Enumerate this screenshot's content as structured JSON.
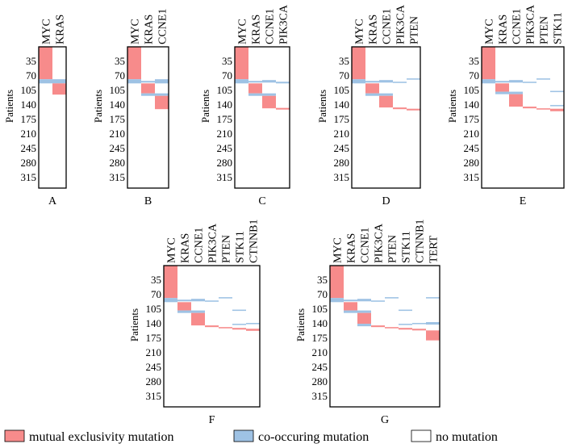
{
  "colors": {
    "exclusive": "#f78b8b",
    "cooccur": "#9ec2e4",
    "none": "#ffffff",
    "border": "#000000"
  },
  "y_axis": {
    "label": "Patients",
    "ticks": [
      "35",
      "70",
      "105",
      "140",
      "175",
      "210",
      "245",
      "280",
      "315"
    ],
    "tick_values": [
      35,
      70,
      105,
      140,
      175,
      210,
      245,
      280,
      315
    ],
    "range": [
      0,
      340
    ]
  },
  "legend": {
    "exclusive_label": "mutual exclusivity mutation",
    "cooccur_label": "co-occuring mutation",
    "none_label": "no mutation"
  },
  "panels": [
    {
      "letter": "A",
      "genes": [
        "MYC",
        "KRAS"
      ],
      "segments": [
        {
          "col": 0,
          "start": 0,
          "end": 78,
          "type": "exclusive"
        },
        {
          "col": 0,
          "start": 78,
          "end": 88,
          "type": "cooccur"
        },
        {
          "col": 1,
          "start": 78,
          "end": 88,
          "type": "cooccur"
        },
        {
          "col": 1,
          "start": 88,
          "end": 115,
          "type": "exclusive"
        }
      ]
    },
    {
      "letter": "B",
      "genes": [
        "MYC",
        "KRAS",
        "CCNE1"
      ],
      "segments": [
        {
          "col": 0,
          "start": 0,
          "end": 78,
          "type": "exclusive"
        },
        {
          "col": 0,
          "start": 78,
          "end": 88,
          "type": "cooccur"
        },
        {
          "col": 1,
          "start": 82,
          "end": 86,
          "type": "cooccur"
        },
        {
          "col": 1,
          "start": 88,
          "end": 112,
          "type": "exclusive"
        },
        {
          "col": 1,
          "start": 112,
          "end": 118,
          "type": "cooccur"
        },
        {
          "col": 2,
          "start": 78,
          "end": 88,
          "type": "cooccur"
        },
        {
          "col": 2,
          "start": 112,
          "end": 118,
          "type": "cooccur"
        },
        {
          "col": 2,
          "start": 118,
          "end": 150,
          "type": "exclusive"
        }
      ]
    },
    {
      "letter": "C",
      "genes": [
        "MYC",
        "KRAS",
        "CCNE1",
        "PIK3CA"
      ],
      "segments": [
        {
          "col": 0,
          "start": 0,
          "end": 78,
          "type": "exclusive"
        },
        {
          "col": 0,
          "start": 78,
          "end": 88,
          "type": "cooccur"
        },
        {
          "col": 1,
          "start": 82,
          "end": 86,
          "type": "cooccur"
        },
        {
          "col": 1,
          "start": 88,
          "end": 112,
          "type": "exclusive"
        },
        {
          "col": 1,
          "start": 112,
          "end": 118,
          "type": "cooccur"
        },
        {
          "col": 2,
          "start": 80,
          "end": 86,
          "type": "cooccur"
        },
        {
          "col": 2,
          "start": 112,
          "end": 118,
          "type": "cooccur"
        },
        {
          "col": 2,
          "start": 118,
          "end": 148,
          "type": "exclusive"
        },
        {
          "col": 3,
          "start": 84,
          "end": 88,
          "type": "cooccur"
        },
        {
          "col": 3,
          "start": 147,
          "end": 151,
          "type": "exclusive"
        }
      ]
    },
    {
      "letter": "D",
      "genes": [
        "MYC",
        "KRAS",
        "CCNE1",
        "PIK3CA",
        "PTEN"
      ],
      "segments": [
        {
          "col": 0,
          "start": 0,
          "end": 78,
          "type": "exclusive"
        },
        {
          "col": 0,
          "start": 78,
          "end": 88,
          "type": "cooccur"
        },
        {
          "col": 1,
          "start": 82,
          "end": 86,
          "type": "cooccur"
        },
        {
          "col": 1,
          "start": 88,
          "end": 112,
          "type": "exclusive"
        },
        {
          "col": 1,
          "start": 112,
          "end": 118,
          "type": "cooccur"
        },
        {
          "col": 2,
          "start": 80,
          "end": 86,
          "type": "cooccur"
        },
        {
          "col": 2,
          "start": 112,
          "end": 118,
          "type": "cooccur"
        },
        {
          "col": 2,
          "start": 118,
          "end": 146,
          "type": "exclusive"
        },
        {
          "col": 3,
          "start": 84,
          "end": 87,
          "type": "cooccur"
        },
        {
          "col": 3,
          "start": 146,
          "end": 150,
          "type": "exclusive"
        },
        {
          "col": 4,
          "start": 76,
          "end": 79,
          "type": "cooccur"
        },
        {
          "col": 4,
          "start": 149,
          "end": 153,
          "type": "exclusive"
        }
      ]
    },
    {
      "letter": "E",
      "genes": [
        "MYC",
        "KRAS",
        "CCNE1",
        "PIK3CA",
        "PTEN",
        "STK11"
      ],
      "segments": [
        {
          "col": 0,
          "start": 0,
          "end": 78,
          "type": "exclusive"
        },
        {
          "col": 0,
          "start": 78,
          "end": 88,
          "type": "cooccur"
        },
        {
          "col": 1,
          "start": 82,
          "end": 86,
          "type": "cooccur"
        },
        {
          "col": 1,
          "start": 88,
          "end": 108,
          "type": "exclusive"
        },
        {
          "col": 1,
          "start": 108,
          "end": 114,
          "type": "cooccur"
        },
        {
          "col": 2,
          "start": 80,
          "end": 86,
          "type": "cooccur"
        },
        {
          "col": 2,
          "start": 108,
          "end": 114,
          "type": "cooccur"
        },
        {
          "col": 2,
          "start": 114,
          "end": 144,
          "type": "exclusive"
        },
        {
          "col": 3,
          "start": 84,
          "end": 87,
          "type": "cooccur"
        },
        {
          "col": 3,
          "start": 144,
          "end": 148,
          "type": "exclusive"
        },
        {
          "col": 4,
          "start": 76,
          "end": 79,
          "type": "cooccur"
        },
        {
          "col": 4,
          "start": 148,
          "end": 151,
          "type": "exclusive"
        },
        {
          "col": 5,
          "start": 106,
          "end": 109,
          "type": "cooccur"
        },
        {
          "col": 5,
          "start": 140,
          "end": 143,
          "type": "cooccur"
        },
        {
          "col": 5,
          "start": 149,
          "end": 155,
          "type": "exclusive"
        }
      ]
    },
    {
      "letter": "F",
      "genes": [
        "MYC",
        "KRAS",
        "CCNE1",
        "PIK3CA",
        "PTEN",
        "STK11",
        "CTNNB1"
      ],
      "segments": [
        {
          "col": 0,
          "start": 0,
          "end": 78,
          "type": "exclusive"
        },
        {
          "col": 0,
          "start": 78,
          "end": 88,
          "type": "cooccur"
        },
        {
          "col": 1,
          "start": 82,
          "end": 86,
          "type": "cooccur"
        },
        {
          "col": 1,
          "start": 88,
          "end": 108,
          "type": "exclusive"
        },
        {
          "col": 1,
          "start": 108,
          "end": 114,
          "type": "cooccur"
        },
        {
          "col": 2,
          "start": 80,
          "end": 86,
          "type": "cooccur"
        },
        {
          "col": 2,
          "start": 108,
          "end": 114,
          "type": "cooccur"
        },
        {
          "col": 2,
          "start": 114,
          "end": 144,
          "type": "exclusive"
        },
        {
          "col": 3,
          "start": 84,
          "end": 87,
          "type": "cooccur"
        },
        {
          "col": 3,
          "start": 144,
          "end": 148,
          "type": "exclusive"
        },
        {
          "col": 4,
          "start": 76,
          "end": 79,
          "type": "cooccur"
        },
        {
          "col": 4,
          "start": 148,
          "end": 151,
          "type": "exclusive"
        },
        {
          "col": 5,
          "start": 106,
          "end": 109,
          "type": "cooccur"
        },
        {
          "col": 5,
          "start": 140,
          "end": 143,
          "type": "cooccur"
        },
        {
          "col": 5,
          "start": 150,
          "end": 154,
          "type": "exclusive"
        },
        {
          "col": 6,
          "start": 138,
          "end": 141,
          "type": "cooccur"
        },
        {
          "col": 6,
          "start": 152,
          "end": 157,
          "type": "exclusive"
        }
      ]
    },
    {
      "letter": "G",
      "genes": [
        "MYC",
        "KRAS",
        "CCNE1",
        "PIK3CA",
        "PTEN",
        "STK11",
        "CTNNB1",
        "TERT"
      ],
      "segments": [
        {
          "col": 0,
          "start": 0,
          "end": 78,
          "type": "exclusive"
        },
        {
          "col": 0,
          "start": 78,
          "end": 88,
          "type": "cooccur"
        },
        {
          "col": 1,
          "start": 82,
          "end": 86,
          "type": "cooccur"
        },
        {
          "col": 1,
          "start": 88,
          "end": 108,
          "type": "exclusive"
        },
        {
          "col": 1,
          "start": 108,
          "end": 114,
          "type": "cooccur"
        },
        {
          "col": 2,
          "start": 80,
          "end": 86,
          "type": "cooccur"
        },
        {
          "col": 2,
          "start": 108,
          "end": 114,
          "type": "cooccur"
        },
        {
          "col": 2,
          "start": 114,
          "end": 140,
          "type": "exclusive"
        },
        {
          "col": 2,
          "start": 140,
          "end": 146,
          "type": "cooccur"
        },
        {
          "col": 3,
          "start": 84,
          "end": 87,
          "type": "cooccur"
        },
        {
          "col": 3,
          "start": 144,
          "end": 148,
          "type": "exclusive"
        },
        {
          "col": 4,
          "start": 76,
          "end": 79,
          "type": "cooccur"
        },
        {
          "col": 4,
          "start": 148,
          "end": 151,
          "type": "exclusive"
        },
        {
          "col": 5,
          "start": 106,
          "end": 109,
          "type": "cooccur"
        },
        {
          "col": 5,
          "start": 140,
          "end": 143,
          "type": "cooccur"
        },
        {
          "col": 5,
          "start": 150,
          "end": 154,
          "type": "exclusive"
        },
        {
          "col": 6,
          "start": 138,
          "end": 141,
          "type": "cooccur"
        },
        {
          "col": 6,
          "start": 152,
          "end": 156,
          "type": "exclusive"
        },
        {
          "col": 7,
          "start": 76,
          "end": 79,
          "type": "cooccur"
        },
        {
          "col": 7,
          "start": 136,
          "end": 142,
          "type": "cooccur"
        },
        {
          "col": 7,
          "start": 156,
          "end": 180,
          "type": "exclusive"
        }
      ]
    }
  ]
}
